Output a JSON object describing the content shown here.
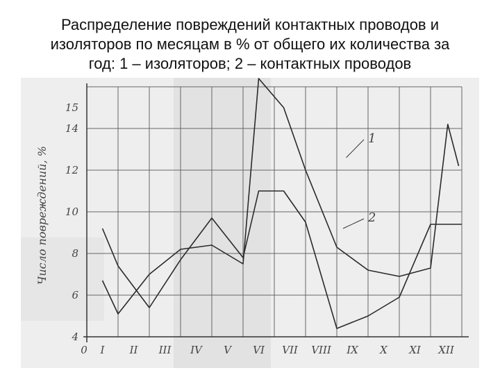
{
  "slide": {
    "title_lines": [
      "Распределение повреждений контактных проводов и",
      "изоляторов по месяцам в % от общего их количества за",
      "год: 1 – изоляторов; 2 – контактных проводов"
    ]
  },
  "chart_data": {
    "type": "line",
    "title": "Распределение повреждений контактных проводов и изоляторов по месяцам в % от общего их количества за год: 1 – изоляторов; 2 – контактных проводов",
    "xlabel": "",
    "ylabel": "Число повреждений, %",
    "categories": [
      "I",
      "II",
      "III",
      "IV",
      "V",
      "VI",
      "VII",
      "VIII",
      "IX",
      "X",
      "XI",
      "XII"
    ],
    "x_origin_label": "0",
    "y_ticks": [
      4,
      6,
      8,
      10,
      12,
      14,
      15
    ],
    "ylim": [
      4,
      16
    ],
    "grid": true,
    "series": [
      {
        "name": "1",
        "x": [
          0.5,
          1,
          2,
          3,
          4,
          5,
          5.5,
          6.3,
          7,
          8,
          9,
          10,
          11,
          11.55,
          11.9
        ],
        "values": [
          6.7,
          5.1,
          7.0,
          8.2,
          8.4,
          7.5,
          16.4,
          15.0,
          12.0,
          8.3,
          7.2,
          6.9,
          7.3,
          14.2,
          12.2
        ]
      },
      {
        "name": "2",
        "x": [
          0.5,
          1,
          2,
          3,
          4,
          5,
          5.5,
          6.3,
          7,
          8,
          9,
          10,
          11,
          12
        ],
        "values": [
          9.2,
          7.4,
          5.4,
          7.7,
          9.7,
          7.8,
          11.0,
          11.0,
          9.5,
          4.4,
          5.0,
          5.9,
          9.4,
          9.4
        ]
      }
    ]
  }
}
